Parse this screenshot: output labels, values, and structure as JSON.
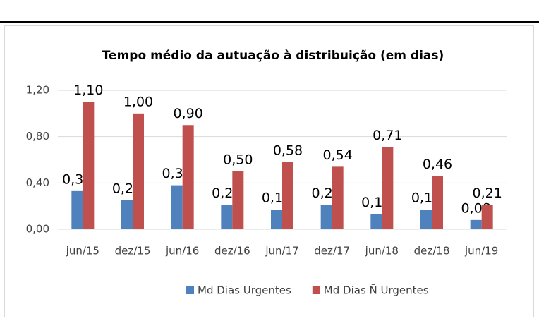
{
  "chart_data": {
    "type": "bar",
    "title": "Tempo médio da autuação à distribuição (em dias)",
    "categories": [
      "jun/15",
      "dez/15",
      "jun/16",
      "dez/16",
      "jun/17",
      "dez/17",
      "jun/18",
      "dez/18",
      "jun/19"
    ],
    "series": [
      {
        "name": "Md Dias Urgentes",
        "color": "#4f81bd",
        "values": [
          0.33,
          0.25,
          0.38,
          0.21,
          0.17,
          0.21,
          0.13,
          0.17,
          0.08
        ],
        "value_labels": [
          "0,33",
          "0,25",
          "0,38",
          "0,21",
          "0,17",
          "0,21",
          "0,13",
          "0,17",
          "0,08"
        ]
      },
      {
        "name": "Md Dias Ñ Urgentes",
        "color": "#c0504d",
        "values": [
          1.1,
          1.0,
          0.9,
          0.5,
          0.58,
          0.54,
          0.71,
          0.46,
          0.21
        ],
        "value_labels": [
          "1,10",
          "1,00",
          "0,90",
          "0,50",
          "0,58",
          "0,54",
          "0,71",
          "0,46",
          "0,21"
        ]
      }
    ],
    "ylim": [
      0,
      1.2
    ],
    "yticks": [
      {
        "value": 0,
        "label": "0,00"
      },
      {
        "value": 0.4,
        "label": "0,40"
      },
      {
        "value": 0.8,
        "label": "0,80"
      },
      {
        "value": 1.2,
        "label": "1,20"
      }
    ],
    "grid": true
  }
}
